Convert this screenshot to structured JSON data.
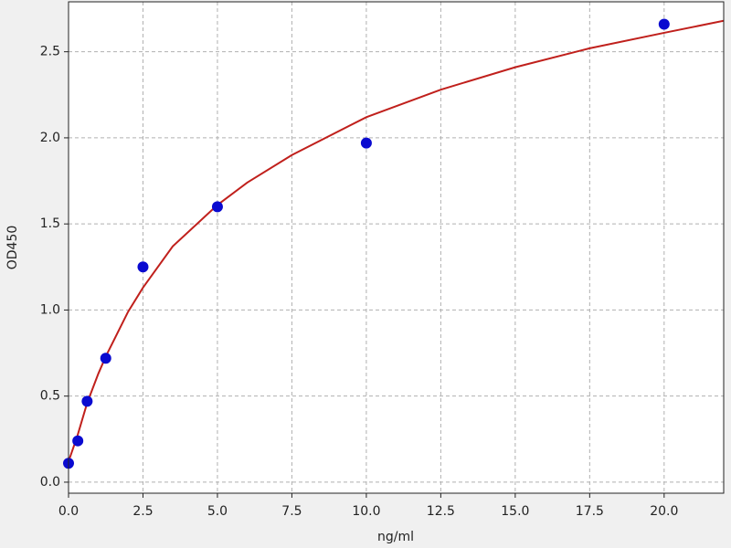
{
  "chart_data": {
    "type": "scatter",
    "xlabel": "ng/ml",
    "ylabel": "OD450",
    "xlim": [
      0,
      22
    ],
    "ylim": [
      -0.064,
      2.79
    ],
    "xticks": [
      {
        "value": 0,
        "label": "0.0"
      },
      {
        "value": 2.5,
        "label": "2.5"
      },
      {
        "value": 5,
        "label": "5.0"
      },
      {
        "value": 7.5,
        "label": "7.5"
      },
      {
        "value": 10,
        "label": "10.0"
      },
      {
        "value": 12.5,
        "label": "12.5"
      },
      {
        "value": 15,
        "label": "15.0"
      },
      {
        "value": 17.5,
        "label": "17.5"
      },
      {
        "value": 20,
        "label": "20.0"
      }
    ],
    "yticks": [
      {
        "value": 0,
        "label": "0.0"
      },
      {
        "value": 0.5,
        "label": "0.5"
      },
      {
        "value": 1,
        "label": "1.0"
      },
      {
        "value": 1.5,
        "label": "1.5"
      },
      {
        "value": 2,
        "label": "2.0"
      },
      {
        "value": 2.5,
        "label": "2.5"
      }
    ],
    "grid": true,
    "series": [
      {
        "style": "line",
        "color": "#c0201c",
        "x": [
          0,
          0.3,
          0.625,
          1,
          1.25,
          2,
          2.5,
          3.5,
          5,
          6,
          7.5,
          10,
          12.5,
          15,
          17.5,
          20,
          22
        ],
        "values": [
          0.12,
          0.27,
          0.46,
          0.63,
          0.73,
          0.99,
          1.13,
          1.37,
          1.61,
          1.74,
          1.9,
          2.12,
          2.28,
          2.41,
          2.52,
          2.61,
          2.68
        ]
      },
      {
        "style": "points",
        "color": "#0a0ad0",
        "x": [
          0,
          0.312,
          0.625,
          1.25,
          2.5,
          5,
          10,
          20
        ],
        "values": [
          0.11,
          0.24,
          0.47,
          0.72,
          1.25,
          1.6,
          1.97,
          2.66
        ]
      }
    ]
  }
}
